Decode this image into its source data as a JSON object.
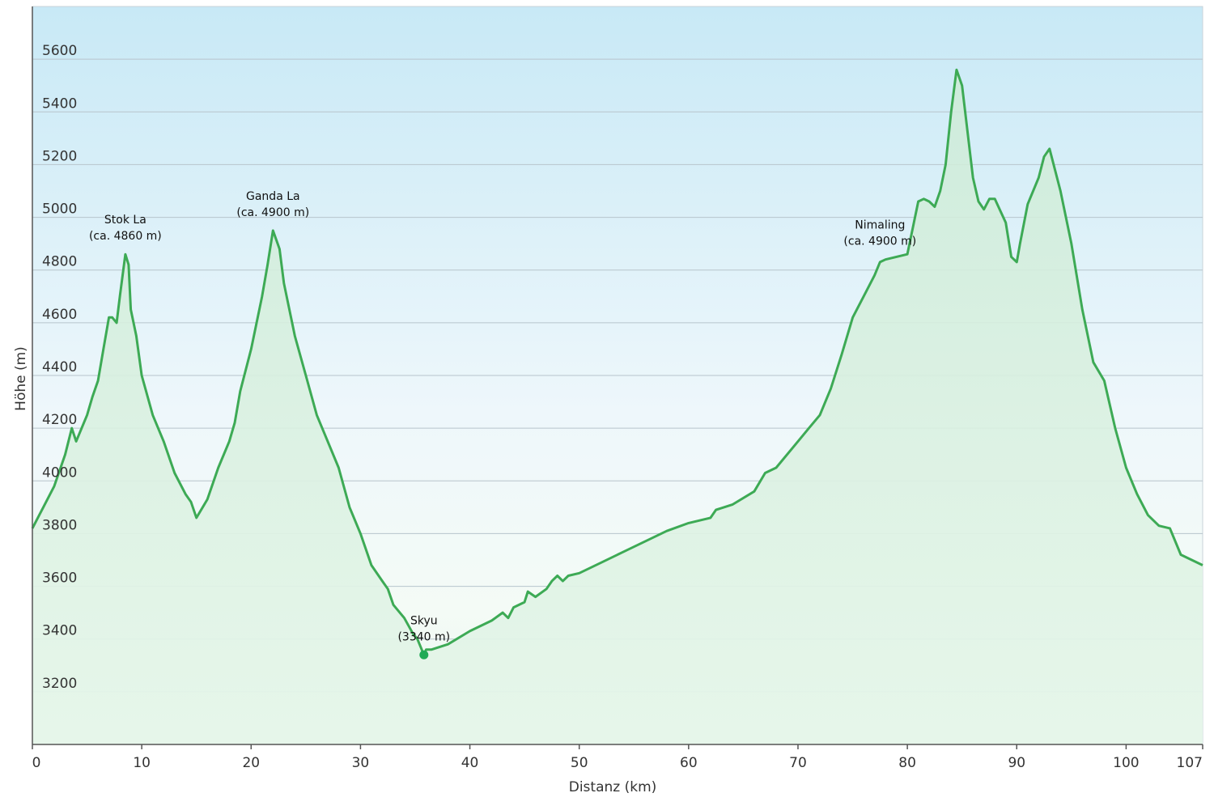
{
  "chart_data": {
    "type": "area",
    "title": "",
    "xlabel": "Distanz  (km)",
    "ylabel": "Höhe (m)",
    "xlim": [
      0,
      107
    ],
    "ylim": [
      3000,
      5800
    ],
    "x_ticks": [
      "0",
      "10",
      "20",
      "30",
      "40",
      "50",
      "60",
      "70",
      "80",
      "90",
      "100",
      "107"
    ],
    "x_tick_values": [
      0,
      10,
      20,
      30,
      40,
      50,
      60,
      70,
      80,
      90,
      100,
      107
    ],
    "y_ticks": [
      "3200",
      "3400",
      "3600",
      "3800",
      "4000",
      "4200",
      "4400",
      "4600",
      "4800",
      "5000",
      "5200",
      "5400",
      "5600"
    ],
    "y_tick_values": [
      3200,
      3400,
      3600,
      3800,
      4000,
      4200,
      4400,
      4600,
      4800,
      5000,
      5200,
      5400,
      5600
    ],
    "grid": true,
    "line_color": "#3daa55",
    "series": [
      {
        "x": [
          0,
          1,
          2,
          3,
          3.6,
          4,
          5,
          5.5,
          6,
          6.5,
          7,
          7.3,
          7.7,
          8,
          8.5,
          8.8,
          9,
          9.5,
          10,
          11,
          12,
          13,
          14,
          14.5,
          15,
          16,
          17,
          18,
          18.5,
          19,
          20,
          21,
          21.5,
          22,
          22.6,
          23,
          24,
          25,
          26,
          27,
          28,
          29,
          30,
          31,
          32,
          32.5,
          33,
          34,
          34.8,
          35.2,
          35.8,
          36,
          36.5,
          38,
          40,
          42,
          43,
          43.5,
          44,
          45,
          45.3,
          46,
          47,
          47.5,
          48,
          48.5,
          49,
          50,
          52,
          54,
          56,
          58,
          60,
          62,
          62.5,
          64,
          66,
          67,
          68,
          70,
          71,
          72,
          73,
          74,
          75,
          76,
          77,
          77.5,
          78,
          79,
          80,
          81,
          81.5,
          82,
          82.5,
          83,
          83.5,
          84,
          84.5,
          85,
          86,
          86.5,
          87,
          87.5,
          88,
          89,
          89.5,
          90,
          90.3,
          91,
          92,
          92.5,
          93,
          94,
          95,
          96,
          97,
          98,
          99,
          100,
          101,
          102,
          103,
          104,
          105,
          106,
          107
        ],
        "values": [
          3820,
          3900,
          3980,
          4100,
          4200,
          4150,
          4250,
          4320,
          4380,
          4500,
          4620,
          4620,
          4600,
          4700,
          4860,
          4820,
          4650,
          4550,
          4400,
          4250,
          4150,
          4030,
          3950,
          3920,
          3860,
          3930,
          4050,
          4150,
          4220,
          4340,
          4500,
          4700,
          4820,
          4950,
          4880,
          4750,
          4550,
          4400,
          4250,
          4150,
          4050,
          3900,
          3800,
          3680,
          3620,
          3590,
          3530,
          3480,
          3420,
          3400,
          3340,
          3360,
          3360,
          3380,
          3430,
          3470,
          3500,
          3480,
          3520,
          3540,
          3580,
          3560,
          3590,
          3620,
          3640,
          3620,
          3640,
          3650,
          3690,
          3730,
          3770,
          3810,
          3840,
          3860,
          3890,
          3910,
          3960,
          4030,
          4050,
          4150,
          4200,
          4250,
          4350,
          4480,
          4620,
          4700,
          4780,
          4830,
          4840,
          4850,
          4860,
          5060,
          5070,
          5060,
          5040,
          5100,
          5200,
          5400,
          5560,
          5500,
          5150,
          5060,
          5030,
          5070,
          5070,
          4980,
          4850,
          4830,
          4900,
          5050,
          5150,
          5230,
          5260,
          5100,
          4900,
          4650,
          4450,
          4380,
          4200,
          4050,
          3950,
          3870,
          3830,
          3820,
          3720,
          3700,
          3680
        ]
      }
    ],
    "annotations": [
      {
        "line1": "Stok La",
        "line2": "(ca. 4860 m)",
        "x": 8.5,
        "y": 4860
      },
      {
        "line1": "Ganda La",
        "line2": "(ca. 4900 m)",
        "x": 22,
        "y": 4950
      },
      {
        "line1": "Skyu",
        "line2": "(3340 m)",
        "x": 35.8,
        "y": 3340
      },
      {
        "line1": "Nimaling",
        "line2": "(ca. 4900 m)",
        "x": 77.5,
        "y": 4840
      }
    ],
    "marker": {
      "x": 35.8,
      "y": 3340,
      "color": "#1faa55"
    }
  }
}
